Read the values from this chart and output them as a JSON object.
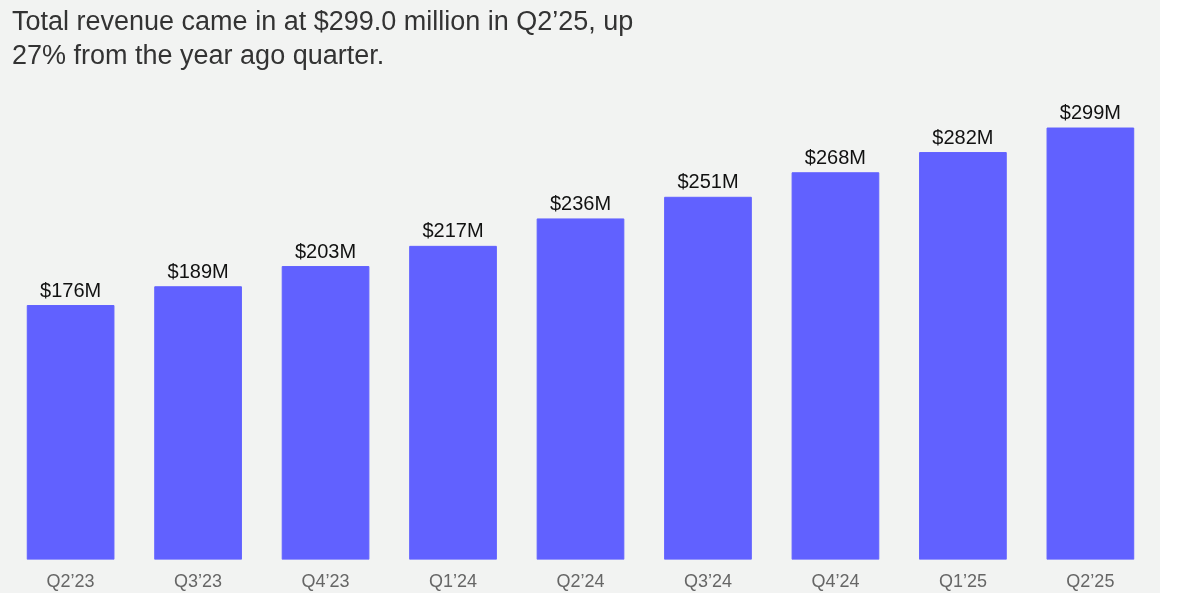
{
  "chart_data": {
    "type": "bar",
    "title": "Total revenue came in at $299.0 million in Q2’25, up 27% from the year ago quarter.",
    "categories": [
      "Q2’23",
      "Q3’23",
      "Q4’23",
      "Q1’24",
      "Q2’24",
      "Q3’24",
      "Q4’24",
      "Q1’25",
      "Q2’25"
    ],
    "values": [
      176,
      189,
      203,
      217,
      236,
      251,
      268,
      282,
      299
    ],
    "value_labels": [
      "$176M",
      "$189M",
      "$203M",
      "$217M",
      "$236M",
      "$251M",
      "$268M",
      "$282M",
      "$299M"
    ],
    "color": "#6161ff",
    "tick_labels": "x",
    "grid": false
  }
}
